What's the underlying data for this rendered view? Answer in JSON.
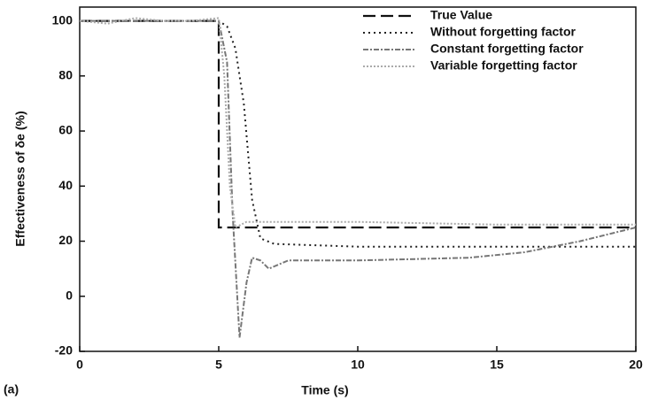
{
  "chart_data": {
    "type": "line",
    "x_label": "Time (s)",
    "y_label": "Effectiveness of δe (%)",
    "annotation": "(a)",
    "xlim": [
      0,
      20
    ],
    "ylim": [
      -20,
      105
    ],
    "xticks": [
      0,
      5,
      10,
      15,
      20
    ],
    "yticks": [
      -20,
      0,
      20,
      40,
      60,
      80,
      100
    ],
    "legend": "top-right",
    "series": [
      {
        "name": "True Value",
        "color": "#111111",
        "dash": "14,6",
        "width": 2.2,
        "x": [
          0,
          5,
          5,
          20
        ],
        "values": [
          100,
          100,
          25,
          25
        ]
      },
      {
        "name": "Without forgetting factor",
        "color": "#222222",
        "dash": "2,4",
        "width": 2,
        "x": [
          0,
          5,
          5.3,
          5.6,
          5.9,
          6.2,
          6.5,
          7,
          10,
          15,
          20
        ],
        "values": [
          100,
          100,
          98,
          90,
          70,
          35,
          21,
          19,
          18,
          18,
          18
        ]
      },
      {
        "name": "Constant forgetting factor",
        "color": "#777777",
        "dash": "6,2,2,2",
        "width": 2,
        "x": [
          0,
          5,
          5.3,
          5.5,
          5.75,
          6,
          6.2,
          6.5,
          6.8,
          7.5,
          10,
          14,
          16,
          18,
          20
        ],
        "values": [
          100,
          100,
          85,
          30,
          -15,
          5,
          14,
          13,
          10,
          13,
          13,
          14,
          16,
          20,
          25
        ]
      },
      {
        "name": "Variable forgetting factor",
        "color": "#aaaaaa",
        "dash": "2,2",
        "width": 2,
        "x": [
          0,
          1,
          2,
          3,
          4,
          5,
          5.2,
          5.4,
          5.6,
          6,
          7,
          10,
          15,
          20
        ],
        "values": [
          100,
          99,
          101,
          100,
          100,
          101,
          80,
          40,
          25,
          27,
          27,
          27,
          26,
          26
        ]
      }
    ]
  }
}
